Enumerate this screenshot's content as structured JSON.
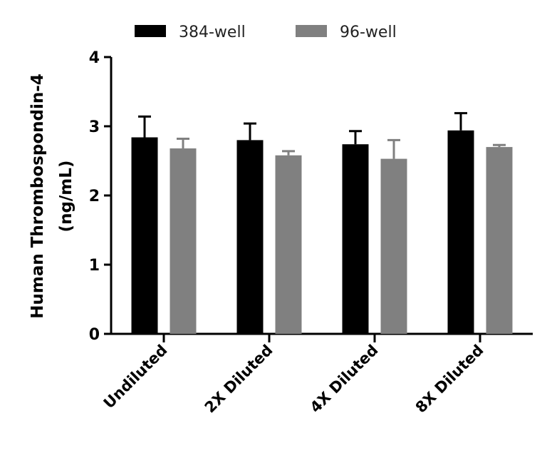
{
  "chart_data": {
    "type": "bar",
    "categories": [
      "Undiluted",
      "2X Diluted",
      "4X Diluted",
      "8X Diluted"
    ],
    "series": [
      {
        "name": "384-well",
        "color": "#000000",
        "values": [
          2.84,
          2.8,
          2.74,
          2.94
        ],
        "errors": [
          0.3,
          0.24,
          0.19,
          0.25
        ]
      },
      {
        "name": "96-well",
        "color": "#808080",
        "values": [
          2.68,
          2.58,
          2.53,
          2.7
        ],
        "errors": [
          0.14,
          0.06,
          0.27,
          0.03
        ]
      }
    ],
    "ylabel_line1": "Human Thrombospondin-4",
    "ylabel_line2": "(ng/mL)",
    "xlabel": "",
    "title": "",
    "ylim": [
      0,
      4
    ],
    "yticks": [
      "0",
      "1",
      "2",
      "3",
      "4"
    ],
    "legend_position": "top",
    "grid": false
  }
}
